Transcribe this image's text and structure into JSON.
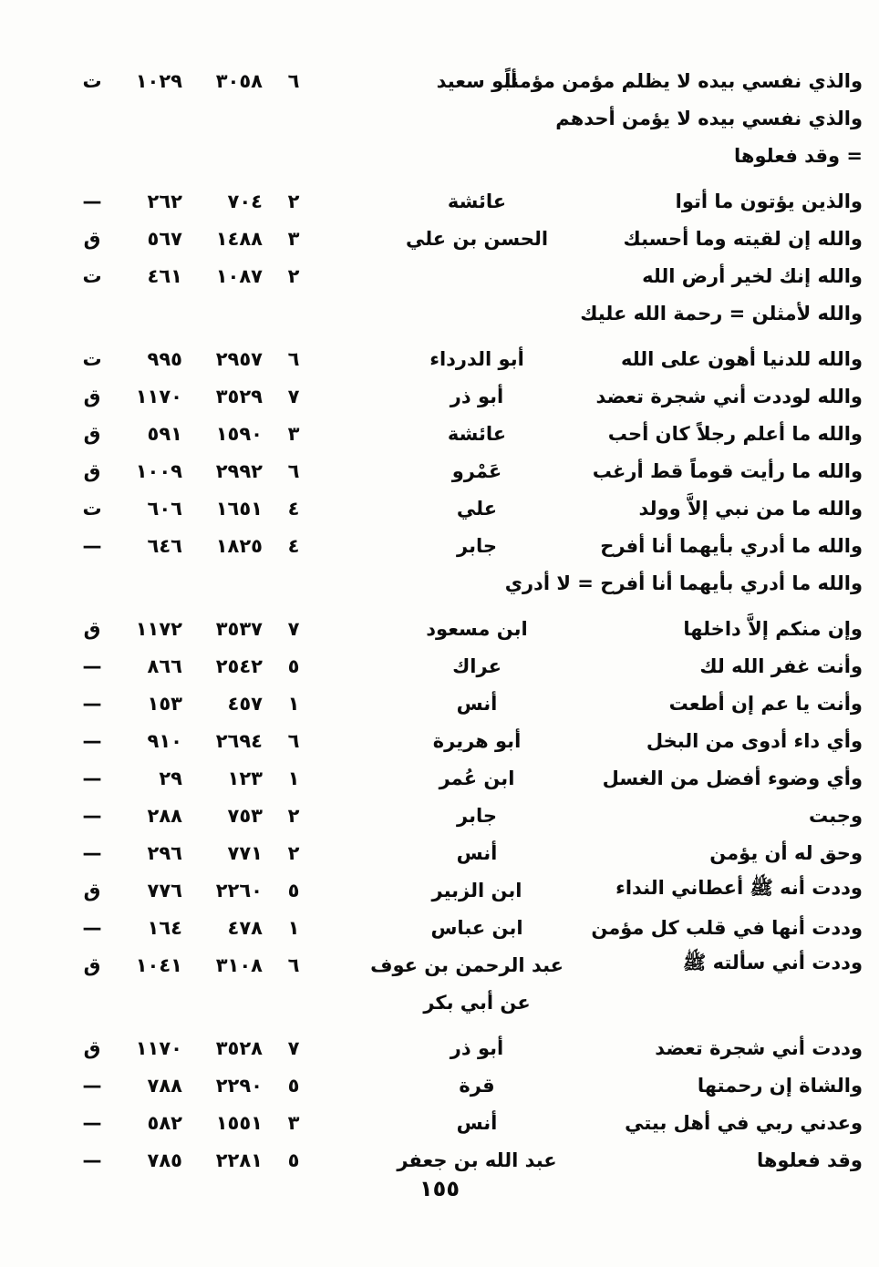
{
  "document": {
    "page_footer": "١٥٥"
  },
  "rows": [
    {
      "matn": "والذي نفسي بيده لا يظلم مؤمن مؤمناً",
      "narrator": "أبو سعيد",
      "vol": "٦",
      "num": "٣٠٥٨",
      "page": "١٠٢٩",
      "src": "ت",
      "gap": false
    },
    {
      "matn": "والذي نفسي بيده لا يؤمن أحدهم",
      "narrator": "",
      "vol": "",
      "num": "",
      "page": "",
      "src": "",
      "gap": false
    },
    {
      "matn": "= وقد فعلوها",
      "narrator": "",
      "vol": "",
      "num": "",
      "page": "",
      "src": "",
      "gap": false
    },
    {
      "matn": "والذين يؤتون ما أتوا",
      "narrator": "عائشة",
      "vol": "٢",
      "num": "٧٠٤",
      "page": "٢٦٢",
      "src": "—",
      "gap": true
    },
    {
      "matn": "والله إن لقيته وما أحسبك",
      "narrator": "الحسن بن علي",
      "vol": "٣",
      "num": "١٤٨٨",
      "page": "٥٦٧",
      "src": "ق",
      "gap": false
    },
    {
      "matn": "والله إنك لخير أرض الله",
      "narrator": "",
      "vol": "٢",
      "num": "١٠٨٧",
      "page": "٤٦١",
      "src": "ت",
      "gap": false
    },
    {
      "matn": "والله لأمثلن = رحمة الله عليك",
      "narrator": "",
      "vol": "",
      "num": "",
      "page": "",
      "src": "",
      "gap": false
    },
    {
      "matn": "والله للدنيا أهون على الله",
      "narrator": "أبو الدرداء",
      "vol": "٦",
      "num": "٢٩٥٧",
      "page": "٩٩٥",
      "src": "ت",
      "gap": true
    },
    {
      "matn": "والله لوددت أني شجرة تعضد",
      "narrator": "أبو ذر",
      "vol": "٧",
      "num": "٣٥٢٩",
      "page": "١١٧٠",
      "src": "ق",
      "gap": false
    },
    {
      "matn": "والله ما أعلم رجلاً كان أحب",
      "narrator": "عائشة",
      "vol": "٣",
      "num": "١٥٩٠",
      "page": "٥٩١",
      "src": "ق",
      "gap": false
    },
    {
      "matn": "والله ما رأيت قوماً قط أرغب",
      "narrator": "عَمْرو",
      "vol": "٦",
      "num": "٢٩٩٢",
      "page": "١٠٠٩",
      "src": "ق",
      "gap": false
    },
    {
      "matn": "والله ما من نبي إلاَّ وولد",
      "narrator": "علي",
      "vol": "٤",
      "num": "١٦٥١",
      "page": "٦٠٦",
      "src": "ت",
      "gap": false
    },
    {
      "matn": "والله ما أدري بأيهما أنا أفرح",
      "narrator": "جابر",
      "vol": "٤",
      "num": "١٨٢٥",
      "page": "٦٤٦",
      "src": "—",
      "gap": false
    },
    {
      "matn": "والله ما أدري بأيهما أنا أفرح = لا أدري",
      "narrator": "",
      "vol": "",
      "num": "",
      "page": "",
      "src": "",
      "gap": false
    },
    {
      "matn": "وإن منكم إلاَّ داخلها",
      "narrator": "ابن مسعود",
      "vol": "٧",
      "num": "٣٥٣٧",
      "page": "١١٧٢",
      "src": "ق",
      "gap": true
    },
    {
      "matn": "وأنت غفر الله لك",
      "narrator": "عراك",
      "vol": "٥",
      "num": "٢٥٤٢",
      "page": "٨٦٦",
      "src": "—",
      "gap": false
    },
    {
      "matn": "وأنت يا عم إن أطعت",
      "narrator": "أنس",
      "vol": "١",
      "num": "٤٥٧",
      "page": "١٥٣",
      "src": "—",
      "gap": false
    },
    {
      "matn": "وأي داء أدوى من البخل",
      "narrator": "أبو هريرة",
      "vol": "٦",
      "num": "٢٦٩٤",
      "page": "٩١٠",
      "src": "—",
      "gap": false
    },
    {
      "matn": "وأي وضوء أفضل من الغسل",
      "narrator": "ابن عُمر",
      "vol": "١",
      "num": "١٢٣",
      "page": "٢٩",
      "src": "—",
      "gap": false
    },
    {
      "matn": "وجبت",
      "narrator": "جابر",
      "vol": "٢",
      "num": "٧٥٣",
      "page": "٢٨٨",
      "src": "—",
      "gap": false
    },
    {
      "matn": "وحق له أن يؤمن",
      "narrator": "أنس",
      "vol": "٢",
      "num": "٧٧١",
      "page": "٢٩٦",
      "src": "—",
      "gap": false
    },
    {
      "matn": "وددت أنه ﷺ أعطاني النداء",
      "narrator": "ابن الزبير",
      "vol": "٥",
      "num": "٢٢٦٠",
      "page": "٧٧٦",
      "src": "ق",
      "gap": false
    },
    {
      "matn": "وددت أنها في قلب كل مؤمن",
      "narrator": "ابن عباس",
      "vol": "١",
      "num": "٤٧٨",
      "page": "١٦٤",
      "src": "—",
      "gap": false
    },
    {
      "matn": "وددت أني سألته ﷺ",
      "narrator": "عبد الرحمن بن عوف",
      "vol": "٦",
      "num": "٣١٠٨",
      "page": "١٠٤١",
      "src": "ق",
      "gap": false
    },
    {
      "matn": "",
      "narrator": "عن أبي بكر",
      "vol": "",
      "num": "",
      "page": "",
      "src": "",
      "gap": false
    },
    {
      "matn": "وددت أني شجرة تعضد",
      "narrator": "أبو ذر",
      "vol": "٧",
      "num": "٣٥٢٨",
      "page": "١١٧٠",
      "src": "ق",
      "gap": true
    },
    {
      "matn": "والشاة إن رحمتها",
      "narrator": "قرة",
      "vol": "٥",
      "num": "٢٢٩٠",
      "page": "٧٨٨",
      "src": "—",
      "gap": false
    },
    {
      "matn": "وعدني ربي في أهل بيتي",
      "narrator": "أنس",
      "vol": "٣",
      "num": "١٥٥١",
      "page": "٥٨٢",
      "src": "—",
      "gap": false
    },
    {
      "matn": "وقد فعلوها",
      "narrator": "عبد الله بن جعفر",
      "vol": "٥",
      "num": "٢٢٨١",
      "page": "٧٨٥",
      "src": "—",
      "gap": false
    }
  ]
}
